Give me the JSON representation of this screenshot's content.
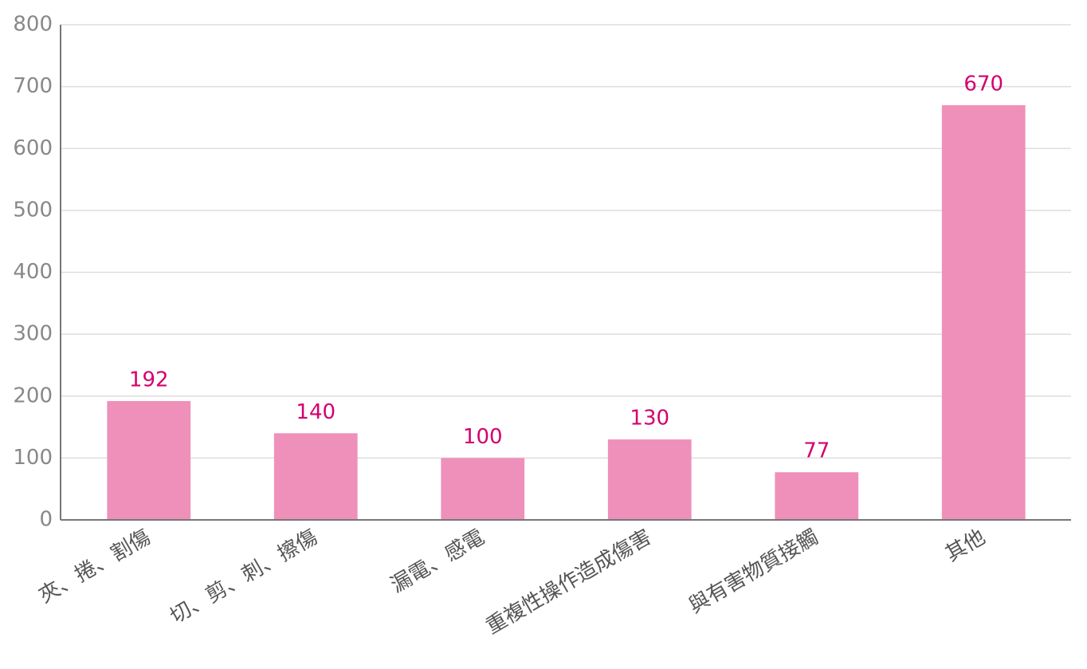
{
  "chart_data": {
    "type": "bar",
    "categories": [
      "夾、捲、割傷",
      "切、剪、刺、擦傷",
      "漏電、感電",
      "重複性操作造成傷害",
      "與有害物質接觸",
      "其他"
    ],
    "values": [
      192,
      140,
      100,
      130,
      77,
      670
    ],
    "color": "#ef90ba",
    "label_color": "#d4006f",
    "ylim": [
      0,
      800
    ],
    "yticks": [
      0,
      100,
      200,
      300,
      400,
      500,
      600,
      700,
      800
    ],
    "grid": true
  }
}
